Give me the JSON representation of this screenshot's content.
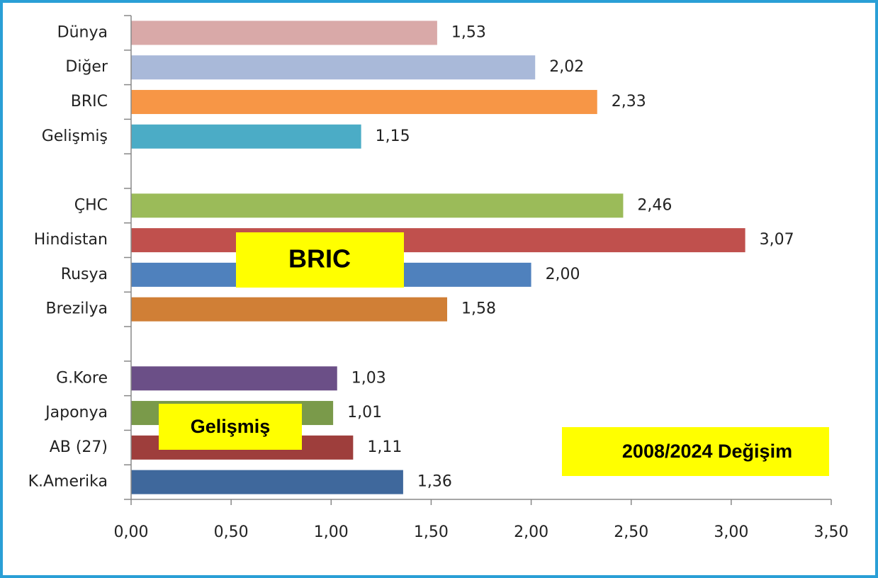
{
  "chart_data": {
    "type": "barh",
    "categories": [
      "Dünya",
      "Diğer",
      "BRIC",
      "Gelişmiş",
      null,
      "ÇHC",
      "Hindistan",
      "Rusya",
      "Brezilya",
      null,
      "G.Kore",
      "Japonya",
      "AB (27)",
      "K.Amerika"
    ],
    "values": [
      1.53,
      2.02,
      2.33,
      1.15,
      null,
      2.46,
      3.07,
      2.0,
      1.58,
      null,
      1.03,
      1.01,
      1.11,
      1.36
    ],
    "value_labels": [
      "1,53",
      "2,02",
      "2,33",
      "1,15",
      null,
      "2,46",
      "3,07",
      "2,00",
      "1,58",
      null,
      "1,03",
      "1,01",
      "1,11",
      "1,36"
    ],
    "colors": [
      "#d9a9a8",
      "#a9b9d9",
      "#f79646",
      "#4bacc6",
      null,
      "#9bbb59",
      "#c0504d",
      "#4f81bd",
      "#d07f36",
      null,
      "#6b4f87",
      "#7a9a4a",
      "#9e3e3c",
      "#3f689c"
    ],
    "xlim": [
      0,
      3.5
    ],
    "xticks": [
      {
        "value": 0,
        "label": "0,00"
      },
      {
        "value": 0.5,
        "label": "0,50"
      },
      {
        "value": 1,
        "label": "1,00"
      },
      {
        "value": 1.5,
        "label": "1,50"
      },
      {
        "value": 2,
        "label": "2,00"
      },
      {
        "value": 2.5,
        "label": "2,50"
      },
      {
        "value": 3,
        "label": "3,00"
      },
      {
        "value": 3.5,
        "label": "3,50"
      }
    ],
    "annotations": [
      "BRIC",
      "Gelişmiş",
      "2008/2024 Değişim"
    ]
  }
}
